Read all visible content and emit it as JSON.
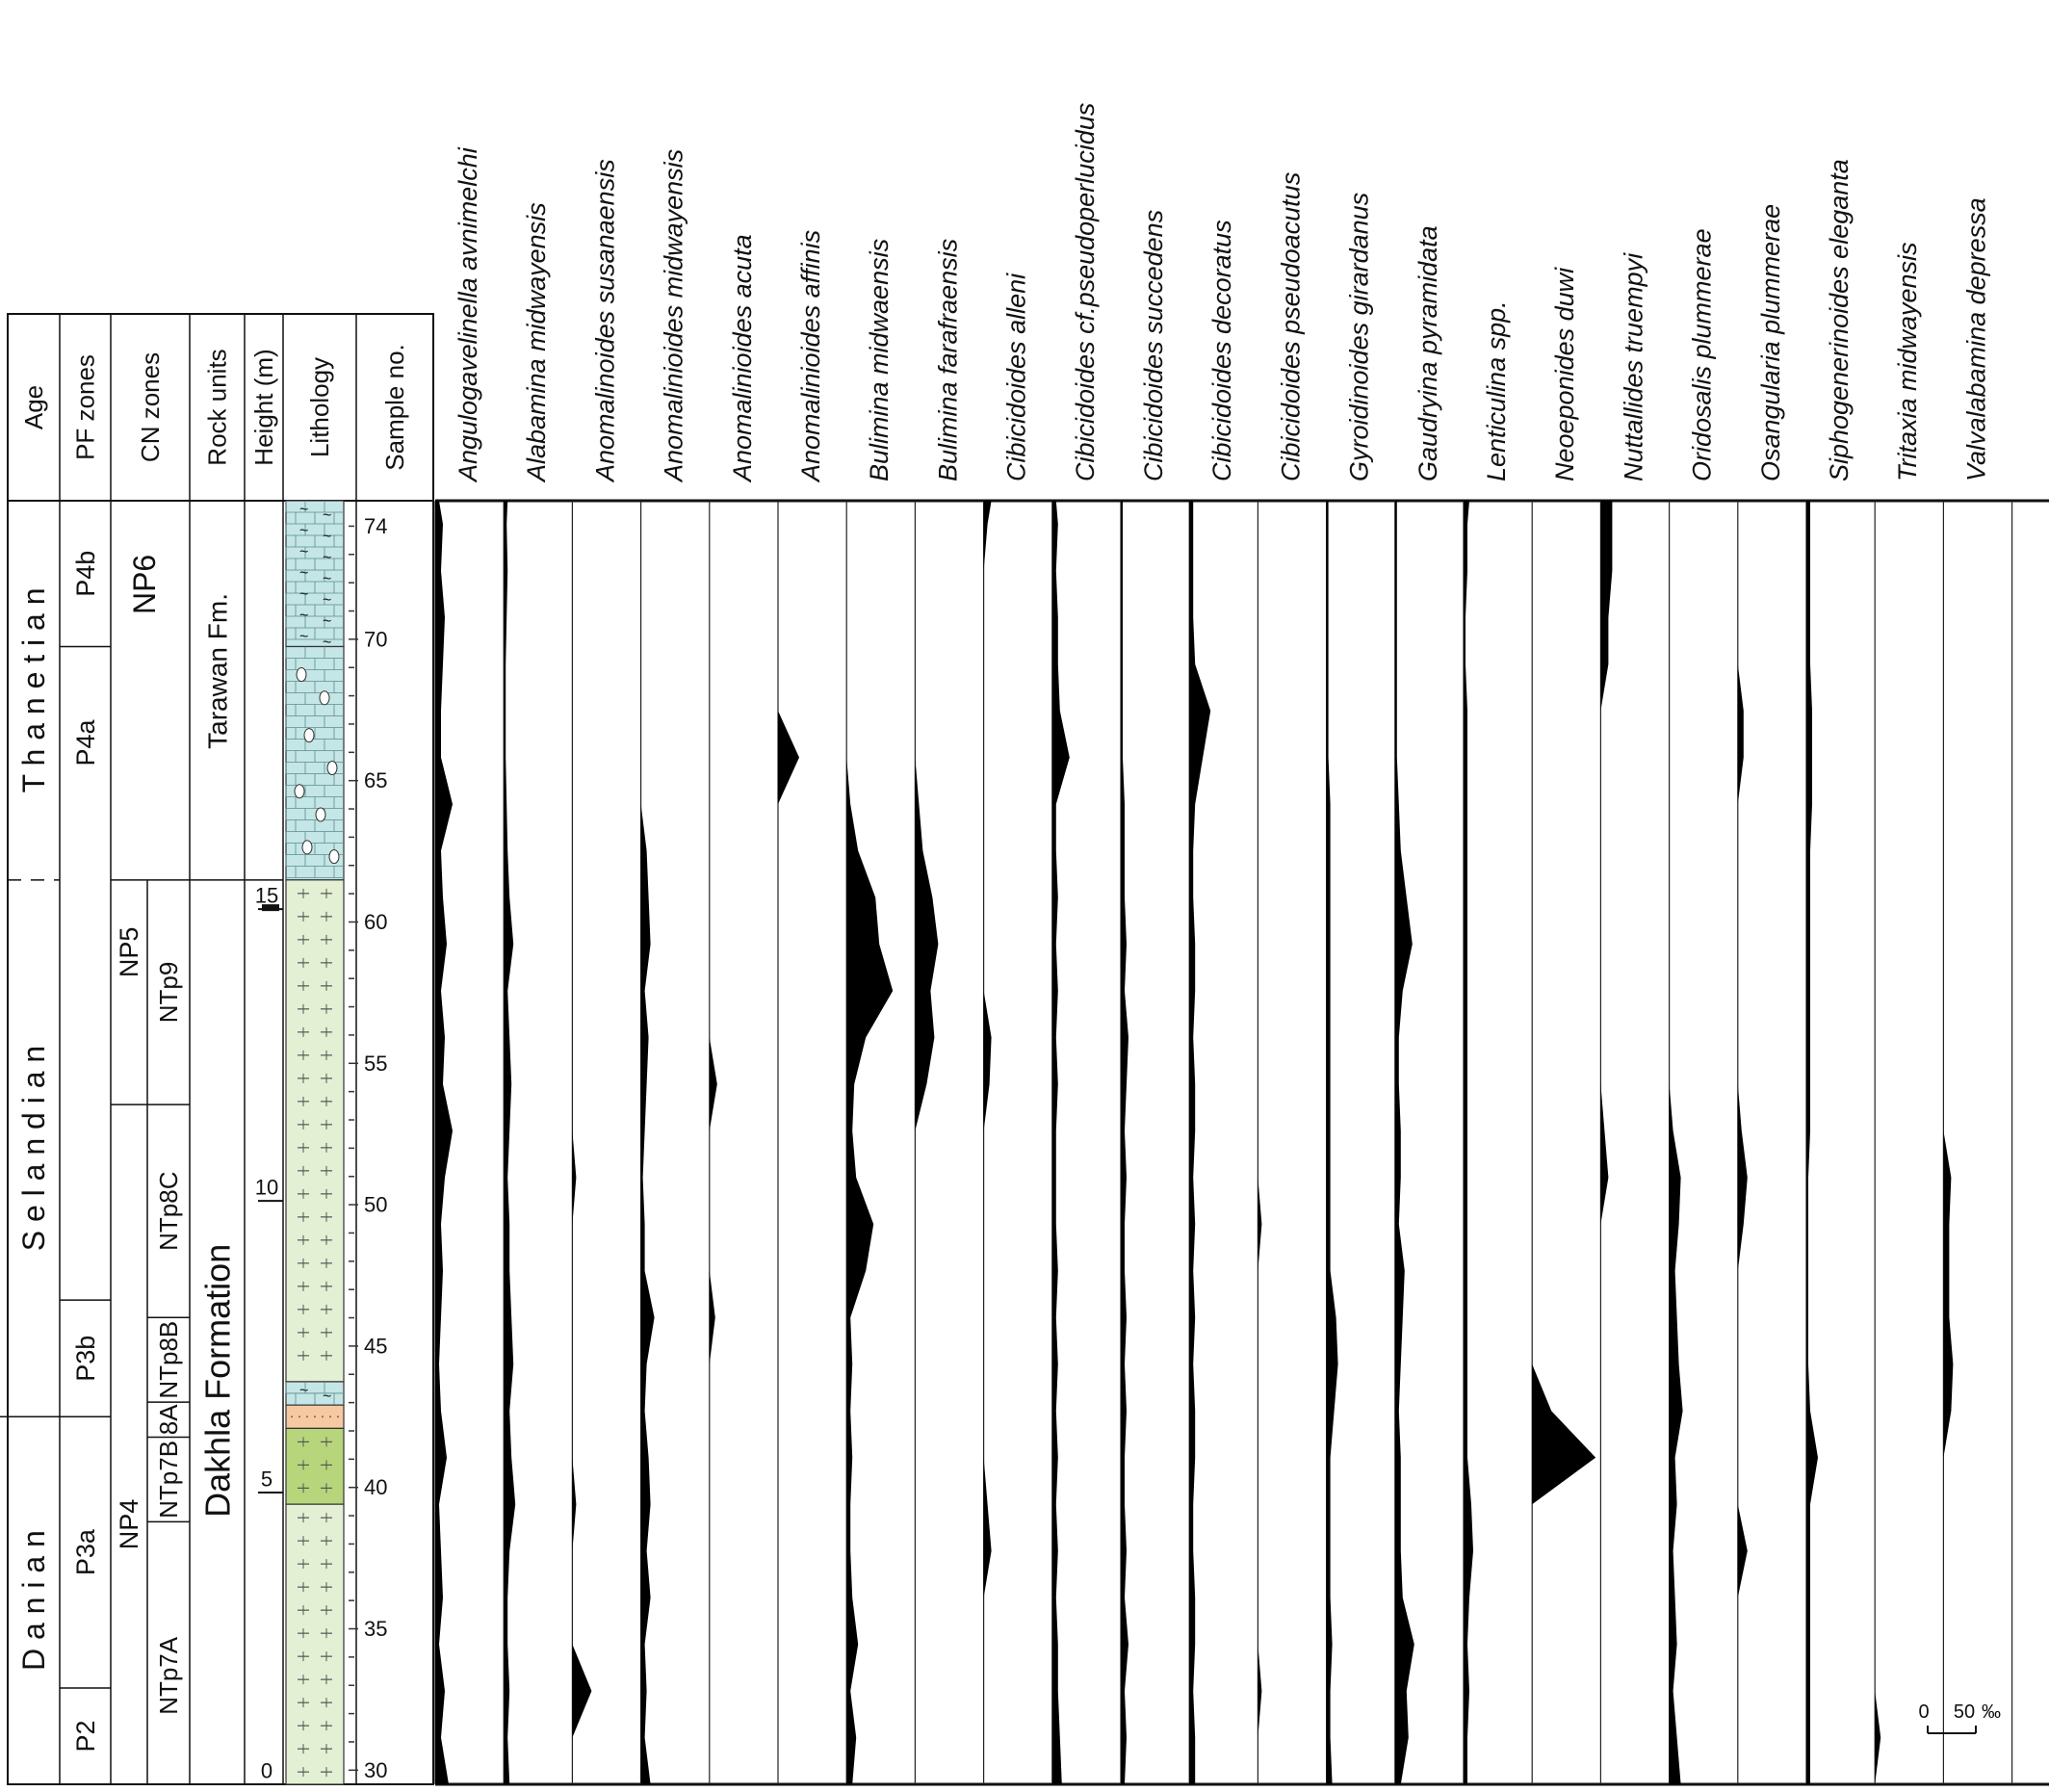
{
  "chart_data": {
    "type": "area",
    "title": "",
    "units": "‰",
    "header": {
      "age": "Age",
      "pf_zones": "PF zones",
      "cn_zones": "CN zones",
      "rock_units": "Rock units",
      "height": "Height (m)",
      "lithology": "Lithology",
      "sample_no": "Sample no."
    },
    "ages": [
      {
        "label": "T h a n e t i a n",
        "from": 15.5,
        "to": 22
      },
      {
        "label": "S e l a n d i a n",
        "from": 6.3,
        "to": 15.5
      },
      {
        "label": "D a n i a n",
        "from": 0,
        "to": 6.3
      }
    ],
    "pf_zones": [
      {
        "label": "P4b",
        "from": 19.5,
        "to": 22
      },
      {
        "label": "P4a",
        "from": 8.3,
        "to": 19.5
      },
      {
        "label": "P3b",
        "from": 6.3,
        "to": 8.3
      },
      {
        "label": "P3a",
        "from": 1.65,
        "to": 6.3
      },
      {
        "label": "P2",
        "from": 0,
        "to": 1.65
      }
    ],
    "cn_nannofossil_zones": [
      {
        "label": "NP6",
        "from": 15.5,
        "to": 22
      },
      {
        "label": "NP5",
        "from": 11.65,
        "to": 15.5
      },
      {
        "label": "NP4",
        "from": 0,
        "to": 11.65
      }
    ],
    "cn_subzones": [
      {
        "label": "NTp9",
        "from": 11.65,
        "to": 15.5
      },
      {
        "label": "NTp8C",
        "from": 8.0,
        "to": 11.65
      },
      {
        "label": "NTp8B",
        "from": 6.55,
        "to": 8.0
      },
      {
        "label": "8A",
        "from": 5.95,
        "to": 6.55
      },
      {
        "label": "NTp7B",
        "from": 4.5,
        "to": 5.95
      },
      {
        "label": "NTp7A",
        "from": 0,
        "to": 4.5
      }
    ],
    "rock_units": [
      {
        "label": "Tarawan  Fm.",
        "from": 15.5,
        "to": 22
      },
      {
        "label": "Dakhla  Formation",
        "from": 0,
        "to": 15.5
      }
    ],
    "height_axis": {
      "label": "Height (m)",
      "ylim": [
        0,
        22
      ],
      "ticks": [
        0,
        5,
        10,
        15
      ]
    },
    "sample_ticks": [
      30,
      35,
      40,
      45,
      50,
      55,
      60,
      65,
      70,
      74
    ],
    "lithology": [
      {
        "type": "chalky limestone",
        "from": 19.5,
        "to": 22,
        "color": "#c5e6e6"
      },
      {
        "type": "nodular limestone",
        "from": 15.5,
        "to": 19.5,
        "color": "#c5e6e6"
      },
      {
        "type": "marly shale",
        "from": 6.9,
        "to": 15.5,
        "color": "#e4f0d4"
      },
      {
        "type": "limestone bed",
        "from": 6.5,
        "to": 6.9,
        "color": "#c5e6e6"
      },
      {
        "type": "sandy bed",
        "from": 6.1,
        "to": 6.5,
        "color": "#f6c9a3"
      },
      {
        "type": "shale",
        "from": 4.8,
        "to": 6.1,
        "color": "#b7d67c"
      },
      {
        "type": "marly shale",
        "from": 0,
        "to": 4.8,
        "color": "#e4f0d4"
      }
    ],
    "heights": [
      0,
      0.8,
      1.6,
      2.4,
      3.2,
      4.0,
      4.8,
      5.6,
      6.4,
      7.2,
      8.0,
      8.8,
      9.6,
      10.4,
      11.2,
      12.0,
      12.8,
      13.6,
      14.4,
      15.2,
      16.0,
      16.8,
      17.6,
      18.4,
      19.2,
      20.0,
      20.8,
      21.6,
      22.0
    ],
    "series": [
      {
        "name": "Angulogavelinella avnimelchi",
        "values": [
          14,
          6,
          10,
          4,
          8,
          6,
          4,
          12,
          6,
          4,
          6,
          8,
          6,
          10,
          18,
          8,
          10,
          6,
          12,
          8,
          6,
          18,
          6,
          6,
          8,
          10,
          6,
          8,
          4
        ]
      },
      {
        "name": "Alabamina midwayensis",
        "values": [
          6,
          4,
          6,
          4,
          4,
          6,
          12,
          8,
          6,
          10,
          8,
          6,
          6,
          4,
          6,
          8,
          6,
          4,
          10,
          6,
          4,
          3,
          2,
          2,
          2,
          3,
          4,
          3,
          4
        ]
      },
      {
        "name": "Anomalinoides susanaensis",
        "values": [
          0,
          0,
          20,
          0,
          0,
          0,
          4,
          0,
          0,
          0,
          0,
          0,
          0,
          4,
          0,
          0,
          0,
          0,
          0,
          0,
          0,
          0,
          0,
          0,
          0,
          0,
          0,
          0,
          0
        ]
      },
      {
        "name": "Anomalinioides midwayensis",
        "values": [
          10,
          4,
          6,
          4,
          10,
          6,
          10,
          8,
          4,
          6,
          14,
          4,
          4,
          2,
          4,
          6,
          8,
          4,
          10,
          8,
          6,
          0,
          0,
          0,
          0,
          0,
          0,
          0,
          0
        ]
      },
      {
        "name": "Anomalinioides acuta",
        "values": [
          0,
          0,
          0,
          0,
          0,
          0,
          0,
          0,
          0,
          0,
          6,
          0,
          0,
          0,
          0,
          8,
          0,
          0,
          0,
          0,
          0,
          0,
          0,
          0,
          0,
          0,
          0,
          0,
          0
        ]
      },
      {
        "name": "Anomalinioides affinis",
        "values": [
          0,
          0,
          0,
          0,
          0,
          0,
          0,
          0,
          0,
          0,
          0,
          0,
          0,
          0,
          0,
          0,
          0,
          0,
          0,
          0,
          0,
          0,
          22,
          0,
          0,
          0,
          0,
          0,
          0
        ]
      },
      {
        "name": "Bulimina midwaensis",
        "values": [
          6,
          10,
          4,
          12,
          6,
          4,
          4,
          6,
          4,
          6,
          4,
          20,
          28,
          10,
          6,
          8,
          20,
          48,
          34,
          30,
          12,
          4,
          0,
          0,
          0,
          0,
          0,
          0,
          0
        ]
      },
      {
        "name": "Bulimina farafraensis",
        "values": [
          0,
          0,
          0,
          0,
          0,
          0,
          0,
          0,
          0,
          0,
          0,
          0,
          0,
          0,
          0,
          12,
          20,
          16,
          24,
          18,
          8,
          4,
          0,
          0,
          0,
          0,
          0,
          0,
          0
        ]
      },
      {
        "name": "Cibicidoides alleni",
        "values": [
          0,
          0,
          0,
          0,
          0,
          8,
          4,
          0,
          0,
          0,
          0,
          0,
          0,
          0,
          0,
          6,
          8,
          0,
          0,
          0,
          0,
          0,
          0,
          0,
          0,
          0,
          0,
          4,
          8
        ]
      },
      {
        "name": "Cibicidoides cf.pseudoperlucidus",
        "values": [
          10,
          8,
          6,
          6,
          4,
          6,
          4,
          6,
          4,
          6,
          4,
          6,
          4,
          4,
          4,
          6,
          4,
          6,
          4,
          6,
          4,
          4,
          18,
          8,
          6,
          6,
          4,
          6,
          4
        ]
      },
      {
        "name": "Cibicidoides succedens",
        "values": [
          4,
          6,
          4,
          8,
          4,
          6,
          4,
          4,
          6,
          4,
          6,
          4,
          4,
          6,
          4,
          6,
          8,
          4,
          6,
          4,
          4,
          4,
          2,
          2,
          2,
          2,
          2,
          2,
          2
        ]
      },
      {
        "name": "Cibicidoides decoratus",
        "values": [
          6,
          6,
          4,
          6,
          6,
          4,
          4,
          6,
          6,
          4,
          6,
          4,
          6,
          4,
          6,
          6,
          4,
          6,
          6,
          4,
          4,
          6,
          14,
          22,
          6,
          4,
          4,
          4,
          4
        ]
      },
      {
        "name": "Cibicidoides pseudoacutus",
        "values": [
          0,
          0,
          4,
          0,
          0,
          0,
          0,
          0,
          0,
          0,
          0,
          0,
          4,
          0,
          0,
          0,
          0,
          0,
          0,
          0,
          0,
          0,
          0,
          0,
          0,
          0,
          0,
          0,
          0
        ]
      },
      {
        "name": "Gyroidinoides girardanus",
        "values": [
          6,
          4,
          4,
          6,
          4,
          4,
          4,
          4,
          8,
          12,
          10,
          4,
          4,
          4,
          4,
          4,
          4,
          4,
          4,
          4,
          4,
          4,
          2,
          2,
          2,
          2,
          2,
          2,
          2
        ]
      },
      {
        "name": "Gaudryina pyramidata",
        "values": [
          6,
          14,
          12,
          20,
          8,
          6,
          6,
          6,
          4,
          6,
          8,
          10,
          4,
          6,
          6,
          4,
          4,
          8,
          18,
          12,
          6,
          4,
          2,
          2,
          2,
          2,
          2,
          2,
          2
        ]
      },
      {
        "name": "Lenticulina spp.",
        "values": [
          4,
          4,
          6,
          4,
          6,
          10,
          8,
          4,
          4,
          4,
          4,
          4,
          4,
          4,
          4,
          4,
          4,
          4,
          4,
          4,
          4,
          4,
          4,
          4,
          2,
          2,
          4,
          4,
          6
        ]
      },
      {
        "name": "Neoeponides duwi",
        "values": [
          0,
          0,
          0,
          0,
          0,
          0,
          0,
          66,
          20,
          0,
          0,
          0,
          0,
          0,
          0,
          0,
          0,
          0,
          0,
          0,
          0,
          0,
          0,
          0,
          0,
          0,
          0,
          0,
          0
        ]
      },
      {
        "name": "Nuttallides truempyi",
        "values": [
          0,
          0,
          0,
          0,
          0,
          0,
          0,
          0,
          0,
          0,
          0,
          0,
          0,
          8,
          4,
          0,
          0,
          0,
          0,
          0,
          0,
          0,
          0,
          0,
          8,
          8,
          12,
          12,
          12
        ]
      },
      {
        "name": "Oridosalis plummerae",
        "values": [
          12,
          8,
          4,
          8,
          6,
          4,
          8,
          6,
          14,
          10,
          8,
          6,
          10,
          12,
          4,
          0,
          0,
          0,
          0,
          0,
          0,
          0,
          0,
          0,
          0,
          0,
          0,
          0,
          0
        ]
      },
      {
        "name": "Osangularia plummerae",
        "values": [
          0,
          0,
          0,
          0,
          0,
          10,
          0,
          0,
          0,
          0,
          0,
          0,
          6,
          10,
          4,
          0,
          0,
          0,
          0,
          0,
          0,
          0,
          6,
          6,
          0,
          0,
          0,
          0,
          0
        ]
      },
      {
        "name": "Siphogenerinoides eleganta",
        "values": [
          4,
          4,
          4,
          4,
          4,
          4,
          4,
          12,
          4,
          2,
          2,
          2,
          2,
          2,
          4,
          4,
          4,
          4,
          4,
          4,
          4,
          6,
          6,
          6,
          4,
          4,
          4,
          4,
          4
        ]
      },
      {
        "name": "Tritaxia midwayensis",
        "values": [
          0,
          6,
          0,
          0,
          0,
          0,
          0,
          0,
          0,
          0,
          0,
          0,
          0,
          0,
          0,
          0,
          0,
          0,
          0,
          0,
          0,
          0,
          0,
          0,
          0,
          0,
          0,
          0,
          0
        ]
      },
      {
        "name": "Valvalabamina depressa",
        "values": [
          0,
          0,
          0,
          0,
          0,
          0,
          0,
          0,
          8,
          10,
          6,
          6,
          6,
          8,
          0,
          0,
          0,
          0,
          0,
          0,
          0,
          0,
          0,
          0,
          0,
          0,
          0,
          0,
          0
        ]
      }
    ],
    "scale_bar": {
      "start": "0",
      "end": "50",
      "unit": "‰"
    }
  }
}
